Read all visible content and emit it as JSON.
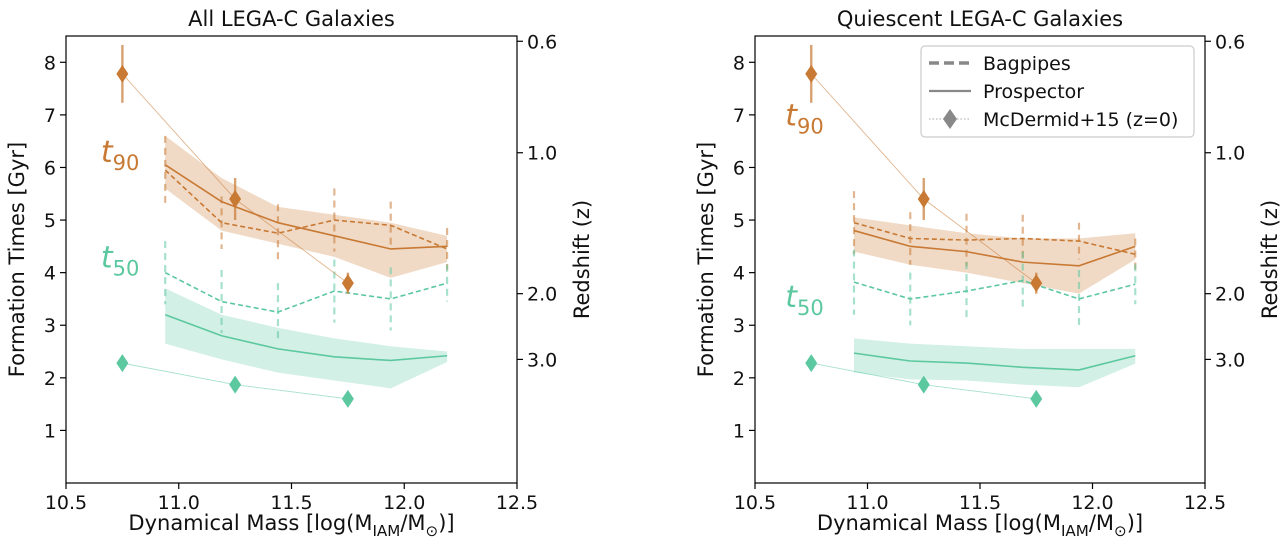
{
  "chart_data": [
    {
      "type": "line",
      "title": "All LEGA-C Galaxies",
      "xlabel": "Dynamical Mass [log(M_IAM/M_⊙)]",
      "ylabel": "Formation Times [Gyr]",
      "y2label": "Redshift (z)",
      "xlim": [
        10.5,
        12.5
      ],
      "ylim": [
        0,
        8.5
      ],
      "xticks": [
        10.5,
        11.0,
        11.5,
        12.0,
        12.5
      ],
      "xtick_labels": [
        "10.5",
        "11.0",
        "11.5",
        "12.0",
        "12.5"
      ],
      "yticks": [
        1,
        2,
        3,
        4,
        5,
        6,
        7,
        8
      ],
      "ytick_labels": [
        "1",
        "2",
        "3",
        "4",
        "5",
        "6",
        "7",
        "8"
      ],
      "y2ticks": [
        {
          "label": "0.6",
          "age_gyr": 8.4
        },
        {
          "label": "1.0",
          "age_gyr": 6.28
        },
        {
          "label": "2.0",
          "age_gyr": 3.6
        },
        {
          "label": "3.0",
          "age_gyr": 2.35
        }
      ],
      "annotations": [
        {
          "text": "t",
          "sub": "90",
          "color": "#c87933",
          "at": [
            10.74,
            6.1
          ]
        },
        {
          "text": "t",
          "sub": "50",
          "color": "#5cc8a0",
          "at": [
            10.74,
            4.1
          ]
        }
      ],
      "series": [
        {
          "group": "t90",
          "method": "Prospector",
          "style": "solid",
          "color": "#c87933",
          "x": [
            10.94,
            11.19,
            11.44,
            11.69,
            11.94,
            12.19
          ],
          "y": [
            6.05,
            5.35,
            4.95,
            4.7,
            4.45,
            4.5
          ],
          "band_low": [
            5.6,
            4.8,
            4.55,
            4.3,
            3.9,
            4.2
          ],
          "band_high": [
            6.6,
            5.8,
            5.25,
            5.1,
            4.95,
            4.7
          ]
        },
        {
          "group": "t90",
          "method": "Bagpipes",
          "style": "dashed",
          "color": "#c87933",
          "x": [
            10.94,
            11.19,
            11.44,
            11.69,
            11.94,
            12.19
          ],
          "y": [
            5.95,
            4.95,
            4.75,
            5.0,
            4.9,
            4.45
          ],
          "err": [
            0.65,
            0.5,
            0.55,
            0.6,
            0.45,
            0.4
          ]
        },
        {
          "group": "t50",
          "method": "Prospector",
          "style": "solid",
          "color": "#5cc8a0",
          "x": [
            10.94,
            11.19,
            11.44,
            11.69,
            11.94,
            12.19
          ],
          "y": [
            3.2,
            2.8,
            2.55,
            2.4,
            2.33,
            2.42
          ],
          "band_low": [
            2.65,
            2.35,
            2.1,
            1.95,
            1.8,
            2.3
          ],
          "band_high": [
            3.7,
            3.2,
            2.95,
            2.75,
            2.6,
            2.5
          ]
        },
        {
          "group": "t50",
          "method": "Bagpipes",
          "style": "dashed",
          "color": "#5cc8a0",
          "x": [
            10.94,
            11.19,
            11.44,
            11.69,
            11.94,
            12.19
          ],
          "y": [
            4.0,
            3.45,
            3.25,
            3.65,
            3.5,
            3.8
          ],
          "err": [
            0.6,
            0.6,
            0.55,
            0.6,
            0.6,
            0.35
          ]
        },
        {
          "group": "t90",
          "method": "McDermid+15 (z=0)",
          "style": "diamond",
          "color": "#c87933",
          "x": [
            10.75,
            11.25,
            11.75
          ],
          "y": [
            7.78,
            5.4,
            3.8
          ],
          "err": [
            0.55,
            0.4,
            0.2
          ]
        },
        {
          "group": "t50",
          "method": "McDermid+15 (z=0)",
          "style": "diamond",
          "color": "#5cc8a0",
          "x": [
            10.75,
            11.25,
            11.75
          ],
          "y": [
            2.28,
            1.87,
            1.6
          ],
          "err": [
            0.12,
            0.1,
            0.1
          ]
        }
      ]
    },
    {
      "type": "line",
      "title": "Quiescent LEGA-C Galaxies",
      "xlabel": "Dynamical Mass [log(M_IAM/M_⊙)]",
      "ylabel": "Formation Times [Gyr]",
      "y2label": "Redshift (z)",
      "xlim": [
        10.5,
        12.5
      ],
      "ylim": [
        0,
        8.5
      ],
      "xticks": [
        10.5,
        11.0,
        11.5,
        12.0,
        12.5
      ],
      "xtick_labels": [
        "10.5",
        "11.0",
        "11.5",
        "12.0",
        "12.5"
      ],
      "yticks": [
        1,
        2,
        3,
        4,
        5,
        6,
        7,
        8
      ],
      "ytick_labels": [
        "1",
        "2",
        "3",
        "4",
        "5",
        "6",
        "7",
        "8"
      ],
      "y2ticks": [
        {
          "label": "0.6",
          "age_gyr": 8.4
        },
        {
          "label": "1.0",
          "age_gyr": 6.28
        },
        {
          "label": "2.0",
          "age_gyr": 3.6
        },
        {
          "label": "3.0",
          "age_gyr": 2.35
        }
      ],
      "annotations": [
        {
          "text": "t",
          "sub": "90",
          "color": "#c87933",
          "at": [
            10.72,
            6.8
          ]
        },
        {
          "text": "t",
          "sub": "50",
          "color": "#5cc8a0",
          "at": [
            10.72,
            3.35
          ]
        }
      ],
      "legend": {
        "placement": "upper right",
        "entries": [
          {
            "label": "Bagpipes",
            "style": "dashed",
            "color": "#888888"
          },
          {
            "label": "Prospector",
            "style": "solid",
            "color": "#888888"
          },
          {
            "label": "McDermid+15 (z=0)",
            "style": "diamond",
            "color": "#888888"
          }
        ]
      },
      "series": [
        {
          "group": "t90",
          "method": "Prospector",
          "style": "solid",
          "color": "#c87933",
          "x": [
            10.94,
            11.19,
            11.44,
            11.69,
            11.94,
            12.19
          ],
          "y": [
            4.8,
            4.5,
            4.4,
            4.2,
            4.13,
            4.5
          ],
          "band_low": [
            4.4,
            4.15,
            4.0,
            3.8,
            3.6,
            4.25
          ],
          "band_high": [
            5.05,
            4.9,
            4.75,
            4.65,
            4.65,
            4.75
          ]
        },
        {
          "group": "t90",
          "method": "Bagpipes",
          "style": "dashed",
          "color": "#c87933",
          "x": [
            10.94,
            11.19,
            11.44,
            11.69,
            11.94,
            12.19
          ],
          "y": [
            4.95,
            4.65,
            4.62,
            4.65,
            4.6,
            4.35
          ],
          "err": [
            0.6,
            0.5,
            0.5,
            0.45,
            0.35,
            0.3
          ]
        },
        {
          "group": "t50",
          "method": "Prospector",
          "style": "solid",
          "color": "#5cc8a0",
          "x": [
            10.94,
            11.19,
            11.44,
            11.69,
            11.94,
            12.19
          ],
          "y": [
            2.47,
            2.32,
            2.28,
            2.2,
            2.15,
            2.42
          ],
          "band_low": [
            2.1,
            1.97,
            1.95,
            1.87,
            1.82,
            2.27
          ],
          "band_high": [
            2.75,
            2.65,
            2.6,
            2.55,
            2.55,
            2.55
          ]
        },
        {
          "group": "t50",
          "method": "Bagpipes",
          "style": "dashed",
          "color": "#5cc8a0",
          "x": [
            10.94,
            11.19,
            11.44,
            11.69,
            11.94,
            12.19
          ],
          "y": [
            3.82,
            3.5,
            3.65,
            3.85,
            3.5,
            3.78
          ],
          "err": [
            0.62,
            0.5,
            0.55,
            0.55,
            0.55,
            0.38
          ]
        },
        {
          "group": "t90",
          "method": "McDermid+15 (z=0)",
          "style": "diamond",
          "color": "#c87933",
          "x": [
            10.75,
            11.25,
            11.75
          ],
          "y": [
            7.78,
            5.4,
            3.8
          ],
          "err": [
            0.55,
            0.4,
            0.2
          ]
        },
        {
          "group": "t50",
          "method": "McDermid+15 (z=0)",
          "style": "diamond",
          "color": "#5cc8a0",
          "x": [
            10.75,
            11.25,
            11.75
          ],
          "y": [
            2.28,
            1.87,
            1.6
          ],
          "err": [
            0.12,
            0.1,
            0.1
          ]
        }
      ]
    }
  ]
}
